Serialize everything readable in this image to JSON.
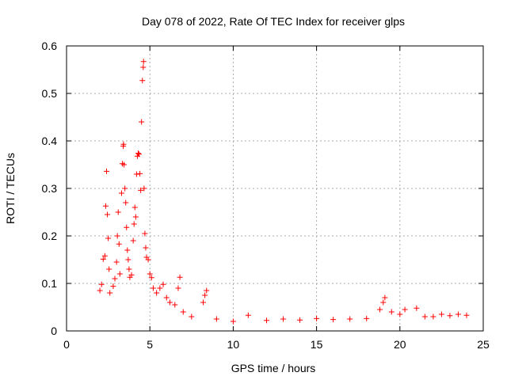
{
  "chart_data": {
    "type": "scatter",
    "title": "Day 078 of 2022, Rate Of TEC Index for receiver glps",
    "xlabel": "GPS time / hours",
    "ylabel": "ROTI / TECUs",
    "xlim": [
      0,
      25
    ],
    "ylim": [
      0,
      0.6
    ],
    "xticks": [
      0,
      5,
      10,
      15,
      20,
      25
    ],
    "yticks": [
      0,
      0.1,
      0.2,
      0.3,
      0.4,
      0.5,
      0.6
    ],
    "grid": true,
    "marker": "+",
    "series": [
      {
        "color": "#ff0000",
        "points": [
          [
            2.0,
            0.085
          ],
          [
            2.1,
            0.098
          ],
          [
            2.2,
            0.151
          ],
          [
            2.3,
            0.158
          ],
          [
            2.35,
            0.263
          ],
          [
            2.4,
            0.336
          ],
          [
            2.45,
            0.245
          ],
          [
            2.5,
            0.195
          ],
          [
            2.55,
            0.13
          ],
          [
            2.6,
            0.08
          ],
          [
            2.8,
            0.094
          ],
          [
            2.9,
            0.11
          ],
          [
            3.0,
            0.145
          ],
          [
            3.05,
            0.2
          ],
          [
            3.1,
            0.25
          ],
          [
            3.15,
            0.183
          ],
          [
            3.2,
            0.12
          ],
          [
            3.3,
            0.29
          ],
          [
            3.35,
            0.352
          ],
          [
            3.4,
            0.389
          ],
          [
            3.42,
            0.393
          ],
          [
            3.45,
            0.35
          ],
          [
            3.5,
            0.3
          ],
          [
            3.55,
            0.27
          ],
          [
            3.6,
            0.218
          ],
          [
            3.65,
            0.17
          ],
          [
            3.7,
            0.15
          ],
          [
            3.75,
            0.13
          ],
          [
            3.8,
            0.113
          ],
          [
            3.9,
            0.118
          ],
          [
            4.0,
            0.19
          ],
          [
            4.05,
            0.225
          ],
          [
            4.1,
            0.26
          ],
          [
            4.15,
            0.24
          ],
          [
            4.2,
            0.33
          ],
          [
            4.25,
            0.368
          ],
          [
            4.3,
            0.374
          ],
          [
            4.35,
            0.372
          ],
          [
            4.4,
            0.331
          ],
          [
            4.45,
            0.296
          ],
          [
            4.5,
            0.44
          ],
          [
            4.55,
            0.527
          ],
          [
            4.6,
            0.555
          ],
          [
            4.62,
            0.567
          ],
          [
            4.65,
            0.3
          ],
          [
            4.7,
            0.205
          ],
          [
            4.75,
            0.175
          ],
          [
            4.8,
            0.155
          ],
          [
            4.9,
            0.15
          ],
          [
            5.0,
            0.12
          ],
          [
            5.1,
            0.112
          ],
          [
            5.2,
            0.09
          ],
          [
            5.4,
            0.08
          ],
          [
            5.6,
            0.09
          ],
          [
            5.8,
            0.098
          ],
          [
            6.0,
            0.07
          ],
          [
            6.2,
            0.06
          ],
          [
            6.5,
            0.055
          ],
          [
            6.7,
            0.09
          ],
          [
            6.8,
            0.113
          ],
          [
            7.0,
            0.04
          ],
          [
            7.5,
            0.03
          ],
          [
            8.2,
            0.06
          ],
          [
            8.3,
            0.075
          ],
          [
            8.4,
            0.085
          ],
          [
            9.0,
            0.025
          ],
          [
            10.0,
            0.02
          ],
          [
            10.9,
            0.033
          ],
          [
            12.0,
            0.022
          ],
          [
            13.0,
            0.025
          ],
          [
            14.0,
            0.023
          ],
          [
            15.0,
            0.026
          ],
          [
            16.0,
            0.024
          ],
          [
            17.0,
            0.025
          ],
          [
            18.0,
            0.026
          ],
          [
            18.8,
            0.045
          ],
          [
            19.0,
            0.06
          ],
          [
            19.1,
            0.07
          ],
          [
            19.5,
            0.04
          ],
          [
            20.0,
            0.035
          ],
          [
            20.3,
            0.045
          ],
          [
            21.0,
            0.048
          ],
          [
            21.5,
            0.03
          ],
          [
            22.0,
            0.03
          ],
          [
            22.5,
            0.035
          ],
          [
            23.0,
            0.032
          ],
          [
            23.5,
            0.035
          ],
          [
            24.0,
            0.033
          ]
        ]
      }
    ]
  }
}
